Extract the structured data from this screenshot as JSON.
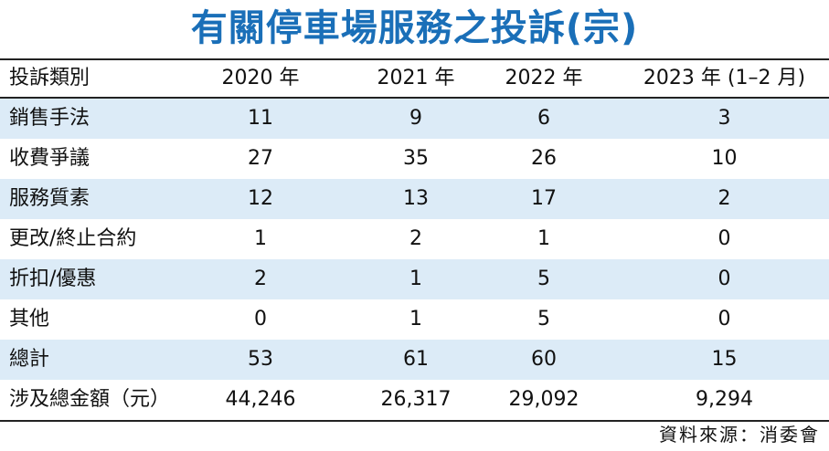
{
  "title": "有關停車場服務之投訴(宗)",
  "columns": [
    "投訴類別",
    "2020 年",
    "2021 年",
    "2022 年",
    "2023 年 (1–2 月)"
  ],
  "rows": [
    {
      "category": "銷售手法",
      "values": [
        "11",
        "9",
        "6",
        "3"
      ]
    },
    {
      "category": "收費爭議",
      "values": [
        "27",
        "35",
        "26",
        "10"
      ]
    },
    {
      "category": "服務質素",
      "values": [
        "12",
        "13",
        "17",
        "2"
      ]
    },
    {
      "category": "更改/終止合約",
      "values": [
        "1",
        "2",
        "1",
        "0"
      ]
    },
    {
      "category": "折扣/優惠",
      "values": [
        "2",
        "1",
        "5",
        "0"
      ]
    },
    {
      "category": "其他",
      "values": [
        "0",
        "1",
        "5",
        "0"
      ]
    },
    {
      "category": "總計",
      "values": [
        "53",
        "61",
        "60",
        "15"
      ]
    },
    {
      "category": "涉及總金額（元）",
      "values": [
        "44,246",
        "26,317",
        "29,092",
        "9,294"
      ]
    }
  ],
  "source": "資料來源：消委會",
  "colors": {
    "title": "#1a6fb8",
    "shade": "#dcebf7"
  }
}
